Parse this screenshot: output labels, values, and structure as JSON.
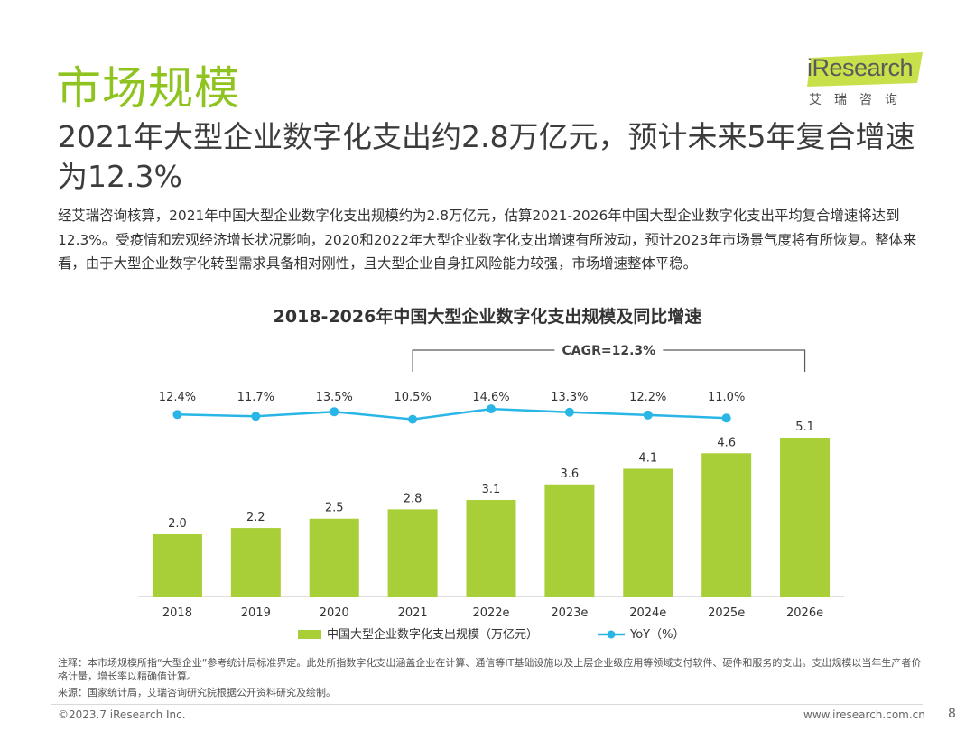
{
  "header": {
    "title": "市场规模",
    "logo_word": "iResearch",
    "logo_cn": "艾瑞咨询"
  },
  "subtitle": "2021年大型企业数字化支出约2.8万亿元，预计未来5年复合增速为12.3%",
  "description": "经艾瑞咨询核算，2021年中国大型企业数字化支出规模约为2.8万亿元，估算2021-2026年中国大型企业数字化支出平均复合增速将达到12.3%。受疫情和宏观经济增长状况影响，2020和2022年大型企业数字化支出增速有所波动，预计2023年市场景气度将有所恢复。整体来看，由于大型企业数字化转型需求具备相对刚性，且大型企业自身扛风险能力较强，市场增速整体平稳。",
  "colors": {
    "accent": "#8fc31f",
    "bar": "#a9cf38",
    "line": "#29b6e6"
  },
  "chart_data": {
    "type": "bar",
    "title": "2018-2026年中国大型企业数字化支出规模及同比增速",
    "categories": [
      "2018",
      "2019",
      "2020",
      "2021",
      "2022e",
      "2023e",
      "2024e",
      "2025e",
      "2026e"
    ],
    "series": [
      {
        "name": "中国大型企业数字化支出规模（万亿元）",
        "kind": "bar",
        "values": [
          2.0,
          2.2,
          2.5,
          2.8,
          3.1,
          3.6,
          4.1,
          4.6,
          5.1
        ],
        "labels": [
          "2.0",
          "2.2",
          "2.5",
          "2.8",
          "3.1",
          "3.6",
          "4.1",
          "4.6",
          "5.1"
        ]
      },
      {
        "name": "YoY（%）",
        "kind": "line",
        "values": [
          12.4,
          11.7,
          13.5,
          10.5,
          14.6,
          13.3,
          12.2,
          11.0,
          null
        ],
        "labels": [
          "12.4%",
          "11.7%",
          "13.5%",
          "10.5%",
          "14.6%",
          "13.3%",
          "12.2%",
          "11.0%",
          ""
        ]
      }
    ],
    "annotation": {
      "text": "CAGR=12.3%",
      "from": "2021",
      "to": "2026e"
    },
    "ylim": [
      0,
      5.1
    ],
    "legend_position": "bottom"
  },
  "footnotes": {
    "note": "注释：本市场规模所指“大型企业”参考统计局标准界定。此处所指数字化支出涵盖企业在计算、通信等IT基础设施以及上层企业级应用等领域支付软件、硬件和服务的支出。支出规模以当年生产者价格计量，增长率以精确值计算。",
    "source": "来源：国家统计局，艾瑞咨询研究院根据公开资料研究及绘制。"
  },
  "footer": {
    "copyright": "©2023.7 iResearch Inc.",
    "website": "www.iresearch.com.cn",
    "page": "8"
  }
}
